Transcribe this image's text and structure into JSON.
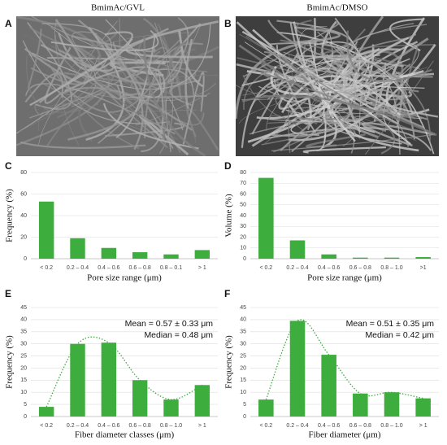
{
  "images": [
    {
      "label": "A",
      "title": "BmimAc/GVL"
    },
    {
      "label": "B",
      "title": "BmimAc/DMSO"
    }
  ],
  "chart_data": [
    {
      "type": "bar",
      "label": "C",
      "categories": [
        "< 0.2",
        "0.2 – 0.4",
        "0.4 – 0.6",
        "0.6 – 0.8",
        "0.8 – 0.1",
        "> 1"
      ],
      "values": [
        53,
        19,
        10,
        6,
        4,
        8
      ],
      "color": "#3dae3d",
      "ylim": [
        0,
        80
      ],
      "yticks": [
        0,
        20,
        40,
        60,
        80
      ],
      "grid": true,
      "xlabel": "Pore size range (μm)",
      "ylabel": "Frequency (%)"
    },
    {
      "type": "bar",
      "label": "D",
      "categories": [
        "< 0.2",
        "0.2 – 0.4",
        "0.4 – 0.6",
        "0.6 – 0.8",
        "0.8 – 1.0",
        ">1"
      ],
      "values": [
        75,
        17,
        4,
        1,
        1,
        1.5
      ],
      "color": "#3dae3d",
      "ylim": [
        0,
        80
      ],
      "yticks": [
        0,
        10,
        20,
        30,
        40,
        50,
        60,
        70,
        80
      ],
      "grid": true,
      "xlabel": "Pore size range (μm)",
      "ylabel": "Volume (%)"
    },
    {
      "type": "bar",
      "label": "E",
      "categories": [
        "< 0.2",
        "0.2 – 0.4",
        "0.4 – 0.6",
        "0.6 – 0.8",
        "0.8 – 1.0",
        "> 1"
      ],
      "values": [
        4,
        30,
        30.5,
        15,
        7,
        13
      ],
      "color": "#3dae3d",
      "ylim": [
        0,
        45
      ],
      "yticks": [
        0,
        5,
        10,
        15,
        20,
        25,
        30,
        35,
        40,
        45
      ],
      "grid": true,
      "xlabel": "Fiber diameter classes (μm)",
      "ylabel": "Frequency (%)",
      "annotations": [
        "Mean = 0.57 ± 0.33 μm",
        "Median = 0.48 μm"
      ]
    },
    {
      "type": "bar",
      "label": "F",
      "categories": [
        "< 0.2",
        "0.2 – 0.4",
        "0.4 – 0.6",
        "0.6 – 0.8",
        "0.8 – 1.0",
        "> 1"
      ],
      "values": [
        7,
        39.5,
        25.5,
        9.5,
        10,
        7.5
      ],
      "color": "#3dae3d",
      "ylim": [
        0,
        45
      ],
      "yticks": [
        0,
        5,
        10,
        15,
        20,
        25,
        30,
        35,
        40,
        45
      ],
      "grid": true,
      "xlabel": "Fiber diameter (μm)",
      "ylabel": "Frequency (%)",
      "annotations": [
        "Mean = 0.51 ± 0.35 μm",
        "Median = 0.42 μm"
      ]
    }
  ]
}
